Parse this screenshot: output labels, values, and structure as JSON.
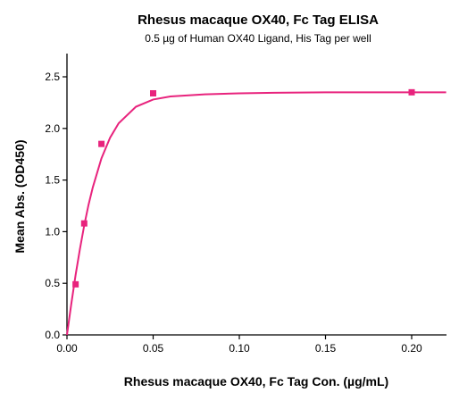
{
  "chart_data": {
    "type": "scatter",
    "title": "Rhesus macaque OX40, Fc Tag ELISA",
    "subtitle": "0.5 µg of Human OX40 Ligand, His Tag per well",
    "xlabel": "Rhesus macaque OX40, Fc Tag Con. (µg/mL)",
    "ylabel": "Mean Abs. (OD450)",
    "xlim": [
      0,
      0.22
    ],
    "ylim": [
      0,
      2.5
    ],
    "x_ticks": [
      0.0,
      0.05,
      0.1,
      0.15,
      0.2
    ],
    "x_tick_labels": [
      "0.00",
      "0.05",
      "0.10",
      "0.15",
      "0.20"
    ],
    "y_ticks": [
      0.0,
      0.5,
      1.0,
      1.5,
      2.0,
      2.5
    ],
    "y_tick_labels": [
      "0.0",
      "0.5",
      "1.0",
      "1.5",
      "2.0",
      "2.5"
    ],
    "grid": false,
    "legend": "none",
    "colors": {
      "series": "#e8237d",
      "axis": "#000000"
    },
    "series": [
      {
        "points": [
          {
            "x": 0.005,
            "y": 0.49
          },
          {
            "x": 0.01,
            "y": 1.08
          },
          {
            "x": 0.02,
            "y": 1.85
          },
          {
            "x": 0.05,
            "y": 2.34
          },
          {
            "x": 0.2,
            "y": 2.35
          }
        ],
        "fit_curve": {
          "description": "saturation binding fit",
          "x": [
            0,
            0.0025,
            0.005,
            0.0075,
            0.01,
            0.0125,
            0.015,
            0.02,
            0.025,
            0.03,
            0.04,
            0.05,
            0.06,
            0.08,
            0.1,
            0.12,
            0.15,
            0.18,
            0.2,
            0.22
          ],
          "y": [
            0,
            0.3,
            0.58,
            0.83,
            1.06,
            1.26,
            1.43,
            1.71,
            1.91,
            2.05,
            2.21,
            2.28,
            2.31,
            2.33,
            2.34,
            2.345,
            2.35,
            2.35,
            2.35,
            2.35
          ]
        }
      }
    ]
  }
}
